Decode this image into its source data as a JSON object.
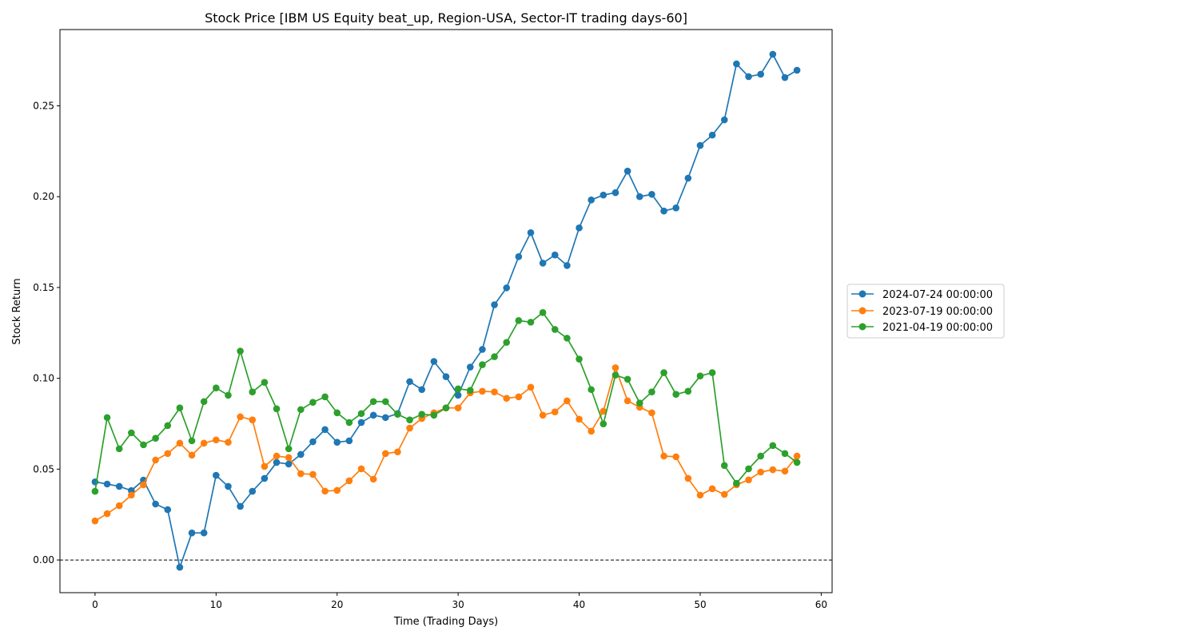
{
  "chart_data": {
    "type": "line",
    "title": "Stock Price [IBM US Equity beat_up, Region-USA, Sector-IT trading days-60]",
    "xlabel": "Time (Trading Days)",
    "ylabel": "Stock Return",
    "xlim": [
      -2.9,
      60.9
    ],
    "ylim": [
      -0.018,
      0.292
    ],
    "xticks": [
      0,
      10,
      20,
      30,
      40,
      50,
      60
    ],
    "yticks": [
      0.0,
      0.05,
      0.1,
      0.15,
      0.2,
      0.25
    ],
    "ytick_labels": [
      "0.00",
      "0.05",
      "0.10",
      "0.15",
      "0.20",
      "0.25"
    ],
    "hline": 0,
    "legend_position": "right",
    "series": [
      {
        "name": "2024-07-24 00:00:00",
        "color": "#1f77b4",
        "values": [
          0.043,
          0.0418,
          0.0405,
          0.0382,
          0.044,
          0.0308,
          0.0277,
          -0.004,
          0.0149,
          0.0149,
          0.0466,
          0.0405,
          0.0295,
          0.0378,
          0.0449,
          0.0537,
          0.0528,
          0.0581,
          0.0651,
          0.0718,
          0.0648,
          0.0656,
          0.0757,
          0.0797,
          0.0784,
          0.0806,
          0.0982,
          0.0938,
          0.1093,
          0.1009,
          0.0907,
          0.1062,
          0.1159,
          0.1405,
          0.1498,
          0.167,
          0.1802,
          0.1634,
          0.1679,
          0.1621,
          0.1828,
          0.1982,
          0.2009,
          0.2022,
          0.2141,
          0.2,
          0.2013,
          0.1921,
          0.1938,
          0.2102,
          0.2282,
          0.2339,
          0.2423,
          0.2731,
          0.2661,
          0.2674,
          0.2784,
          0.2656,
          0.2696
        ]
      },
      {
        "name": "2023-07-19 00:00:00",
        "color": "#ff7f0e",
        "values": [
          0.0215,
          0.0255,
          0.0299,
          0.0357,
          0.0414,
          0.055,
          0.0586,
          0.0643,
          0.0577,
          0.0643,
          0.0661,
          0.0648,
          0.0788,
          0.0771,
          0.0515,
          0.0572,
          0.0564,
          0.0475,
          0.0471,
          0.0379,
          0.0383,
          0.0436,
          0.0502,
          0.0445,
          0.0586,
          0.0595,
          0.0726,
          0.0779,
          0.081,
          0.0837,
          0.0837,
          0.092,
          0.0929,
          0.0925,
          0.089,
          0.0898,
          0.0951,
          0.0797,
          0.0815,
          0.0876,
          0.0775,
          0.0709,
          0.0819,
          0.1058,
          0.0876,
          0.0841,
          0.081,
          0.0572,
          0.0568,
          0.0449,
          0.0357,
          0.0392,
          0.0361,
          0.0414,
          0.0441,
          0.0484,
          0.0497,
          0.0489,
          0.0572
        ]
      },
      {
        "name": "2021-04-19 00:00:00",
        "color": "#2ca02c",
        "values": [
          0.0378,
          0.0784,
          0.0612,
          0.07,
          0.0634,
          0.067,
          0.074,
          0.0837,
          0.0656,
          0.0872,
          0.0947,
          0.0907,
          0.115,
          0.0925,
          0.0978,
          0.0832,
          0.0612,
          0.0828,
          0.0868,
          0.0898,
          0.081,
          0.0757,
          0.0806,
          0.0872,
          0.0872,
          0.0802,
          0.0771,
          0.0802,
          0.0797,
          0.0837,
          0.0942,
          0.0934,
          0.1075,
          0.1119,
          0.1198,
          0.1318,
          0.1309,
          0.1362,
          0.1269,
          0.1221,
          0.1106,
          0.0938,
          0.0749,
          0.1018,
          0.0995,
          0.0864,
          0.0925,
          0.1031,
          0.0912,
          0.0929,
          0.1013,
          0.1031,
          0.052,
          0.0422,
          0.0502,
          0.0572,
          0.063,
          0.0586,
          0.0537
        ]
      }
    ]
  }
}
